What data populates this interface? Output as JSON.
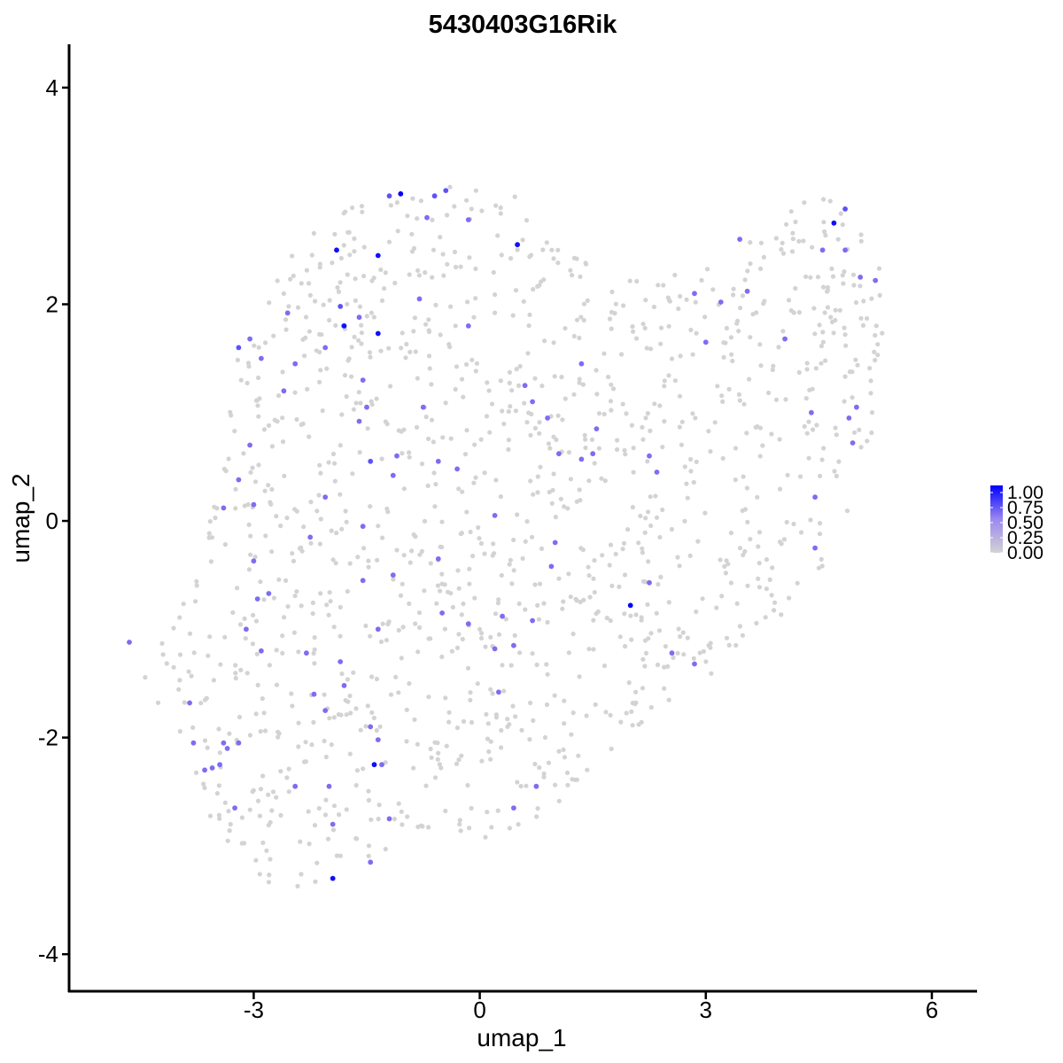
{
  "chart_data": {
    "type": "scatter",
    "title": "5430403G16Rik",
    "xlabel": "umap_1",
    "ylabel": "umap_2",
    "xlim": [
      -5.45,
      6.6
    ],
    "ylim": [
      -4.35,
      4.4
    ],
    "xticks": [
      -3,
      0,
      3,
      6
    ],
    "yticks": [
      -4,
      -2,
      0,
      2,
      4
    ],
    "grid": false,
    "legend_position": "right",
    "legend": {
      "min": 0,
      "max": 1,
      "low_color": "#d3d3d3",
      "high_color": "#0000ff",
      "ticks": [
        "0.00",
        "0.25",
        "0.50",
        "0.75",
        "1.00"
      ]
    },
    "background_points": {
      "color": "#d3d3d3",
      "count": 1300,
      "expression": 0,
      "region_outline": [
        [
          -4.6,
          -1.3
        ],
        [
          -4.4,
          -1.5
        ],
        [
          -3.9,
          -2.2
        ],
        [
          -3.5,
          -2.9
        ],
        [
          -2.6,
          -3.5
        ],
        [
          -1.8,
          -3.3
        ],
        [
          -1.0,
          -3.0
        ],
        [
          0.0,
          -3.0
        ],
        [
          0.9,
          -2.7
        ],
        [
          1.6,
          -2.2
        ],
        [
          2.6,
          -1.6
        ],
        [
          3.6,
          -1.2
        ],
        [
          4.6,
          -0.4
        ],
        [
          5.2,
          0.6
        ],
        [
          5.4,
          2.2
        ],
        [
          5.2,
          2.6
        ],
        [
          4.5,
          3.1
        ],
        [
          3.7,
          2.7
        ],
        [
          2.7,
          2.3
        ],
        [
          1.8,
          2.2
        ],
        [
          1.0,
          2.6
        ],
        [
          0.5,
          3.0
        ],
        [
          -0.4,
          3.1
        ],
        [
          -1.5,
          3.0
        ],
        [
          -2.2,
          2.7
        ],
        [
          -2.8,
          2.2
        ],
        [
          -3.2,
          1.6
        ],
        [
          -3.4,
          0.6
        ],
        [
          -3.7,
          -0.2
        ],
        [
          -4.0,
          -0.9
        ]
      ]
    },
    "expressing_points": [
      [
        -4.65,
        -1.12,
        0.6
      ],
      [
        -3.2,
        1.6,
        0.7
      ],
      [
        -3.05,
        1.68,
        0.6
      ],
      [
        -2.9,
        1.5,
        0.6
      ],
      [
        -2.55,
        1.92,
        0.6
      ],
      [
        -2.45,
        1.45,
        0.6
      ],
      [
        -2.6,
        1.2,
        0.6
      ],
      [
        -2.05,
        1.6,
        0.6
      ],
      [
        -1.85,
        1.98,
        0.7
      ],
      [
        -1.9,
        2.5,
        0.95
      ],
      [
        -1.35,
        2.45,
        0.95
      ],
      [
        -1.8,
        1.8,
        0.95
      ],
      [
        -1.35,
        1.73,
        0.95
      ],
      [
        -1.6,
        1.88,
        0.6
      ],
      [
        -1.55,
        1.3,
        0.6
      ],
      [
        -1.5,
        1.05,
        0.6
      ],
      [
        -1.6,
        0.92,
        0.6
      ],
      [
        -1.45,
        0.55,
        0.7
      ],
      [
        -1.1,
        0.6,
        0.6
      ],
      [
        -1.15,
        0.42,
        0.6
      ],
      [
        -0.75,
        1.05,
        0.6
      ],
      [
        -1.05,
        3.02,
        1.0
      ],
      [
        -1.2,
        3.0,
        0.7
      ],
      [
        -0.6,
        3.0,
        0.7
      ],
      [
        -0.45,
        3.05,
        0.7
      ],
      [
        -0.7,
        2.8,
        0.6
      ],
      [
        -0.15,
        2.78,
        0.6
      ],
      [
        0.5,
        2.55,
        0.95
      ],
      [
        -0.8,
        2.05,
        0.6
      ],
      [
        -0.15,
        1.8,
        0.6
      ],
      [
        0.6,
        1.25,
        0.6
      ],
      [
        0.7,
        1.1,
        0.6
      ],
      [
        0.9,
        0.95,
        0.6
      ],
      [
        1.05,
        0.62,
        0.6
      ],
      [
        1.35,
        1.45,
        0.6
      ],
      [
        1.35,
        0.57,
        0.6
      ],
      [
        1.5,
        0.62,
        0.6
      ],
      [
        1.55,
        0.85,
        0.6
      ],
      [
        2.25,
        0.6,
        0.6
      ],
      [
        2.35,
        0.45,
        0.6
      ],
      [
        2.85,
        2.1,
        0.6
      ],
      [
        3.0,
        1.65,
        0.6
      ],
      [
        3.2,
        2.02,
        0.6
      ],
      [
        3.45,
        2.6,
        0.6
      ],
      [
        3.55,
        2.12,
        0.6
      ],
      [
        4.05,
        1.68,
        0.6
      ],
      [
        4.55,
        2.5,
        0.6
      ],
      [
        4.7,
        2.75,
        0.95
      ],
      [
        4.85,
        2.88,
        0.7
      ],
      [
        4.85,
        2.5,
        0.6
      ],
      [
        5.05,
        2.25,
        0.6
      ],
      [
        5.25,
        2.22,
        0.6
      ],
      [
        4.4,
        1.0,
        0.6
      ],
      [
        4.9,
        0.95,
        0.6
      ],
      [
        5.0,
        1.05,
        0.6
      ],
      [
        4.95,
        0.72,
        0.6
      ],
      [
        4.45,
        0.22,
        0.6
      ],
      [
        4.45,
        -0.25,
        0.6
      ],
      [
        -3.05,
        0.7,
        0.6
      ],
      [
        -3.2,
        0.38,
        0.6
      ],
      [
        -3.0,
        0.15,
        0.6
      ],
      [
        -3.4,
        0.12,
        0.6
      ],
      [
        -3.0,
        -0.37,
        0.6
      ],
      [
        -2.25,
        -0.15,
        0.6
      ],
      [
        -2.05,
        0.22,
        0.6
      ],
      [
        -1.55,
        -0.05,
        0.6
      ],
      [
        -1.55,
        -0.55,
        0.6
      ],
      [
        -1.15,
        -0.5,
        0.6
      ],
      [
        -0.55,
        0.55,
        0.6
      ],
      [
        -0.3,
        0.48,
        0.6
      ],
      [
        -0.55,
        -0.35,
        0.6
      ],
      [
        0.2,
        0.05,
        0.6
      ],
      [
        1.0,
        -0.2,
        0.6
      ],
      [
        0.95,
        -0.42,
        0.6
      ],
      [
        -0.5,
        -0.85,
        0.6
      ],
      [
        -0.15,
        -0.95,
        0.6
      ],
      [
        0.3,
        -0.88,
        0.6
      ],
      [
        0.7,
        -0.92,
        0.6
      ],
      [
        0.2,
        -1.18,
        0.6
      ],
      [
        0.45,
        -1.15,
        0.6
      ],
      [
        2.0,
        -0.78,
        1.0
      ],
      [
        2.25,
        -0.57,
        0.6
      ],
      [
        2.55,
        -1.22,
        0.6
      ],
      [
        2.85,
        -1.32,
        0.6
      ],
      [
        -2.8,
        -0.67,
        0.6
      ],
      [
        -2.95,
        -0.72,
        0.6
      ],
      [
        -3.1,
        -1.0,
        0.6
      ],
      [
        -2.9,
        -1.2,
        0.6
      ],
      [
        -1.35,
        -1.0,
        0.6
      ],
      [
        -1.85,
        -1.3,
        0.6
      ],
      [
        -1.8,
        -1.52,
        0.6
      ],
      [
        -2.3,
        -1.22,
        0.6
      ],
      [
        -2.2,
        -1.6,
        0.6
      ],
      [
        -2.05,
        -1.75,
        0.6
      ],
      [
        0.25,
        -1.58,
        0.6
      ],
      [
        -3.85,
        -1.68,
        0.6
      ],
      [
        -3.8,
        -2.05,
        0.6
      ],
      [
        -3.4,
        -2.05,
        0.6
      ],
      [
        -3.2,
        -2.05,
        0.6
      ],
      [
        -3.35,
        -2.1,
        0.6
      ],
      [
        -3.65,
        -2.3,
        0.6
      ],
      [
        -3.55,
        -2.28,
        0.6
      ],
      [
        -3.45,
        -2.25,
        0.6
      ],
      [
        -3.25,
        -2.65,
        0.6
      ],
      [
        -2.45,
        -2.45,
        0.6
      ],
      [
        -2.0,
        -2.45,
        0.6
      ],
      [
        -1.45,
        -1.9,
        0.6
      ],
      [
        -1.35,
        -2.02,
        0.6
      ],
      [
        -1.4,
        -2.25,
        0.95
      ],
      [
        -1.3,
        -2.25,
        0.6
      ],
      [
        -1.2,
        -2.75,
        0.6
      ],
      [
        -1.95,
        -2.8,
        0.6
      ],
      [
        -1.45,
        -3.15,
        0.6
      ],
      [
        -1.95,
        -3.3,
        0.95
      ],
      [
        0.75,
        -2.45,
        0.6
      ],
      [
        0.45,
        -2.65,
        0.6
      ]
    ]
  }
}
